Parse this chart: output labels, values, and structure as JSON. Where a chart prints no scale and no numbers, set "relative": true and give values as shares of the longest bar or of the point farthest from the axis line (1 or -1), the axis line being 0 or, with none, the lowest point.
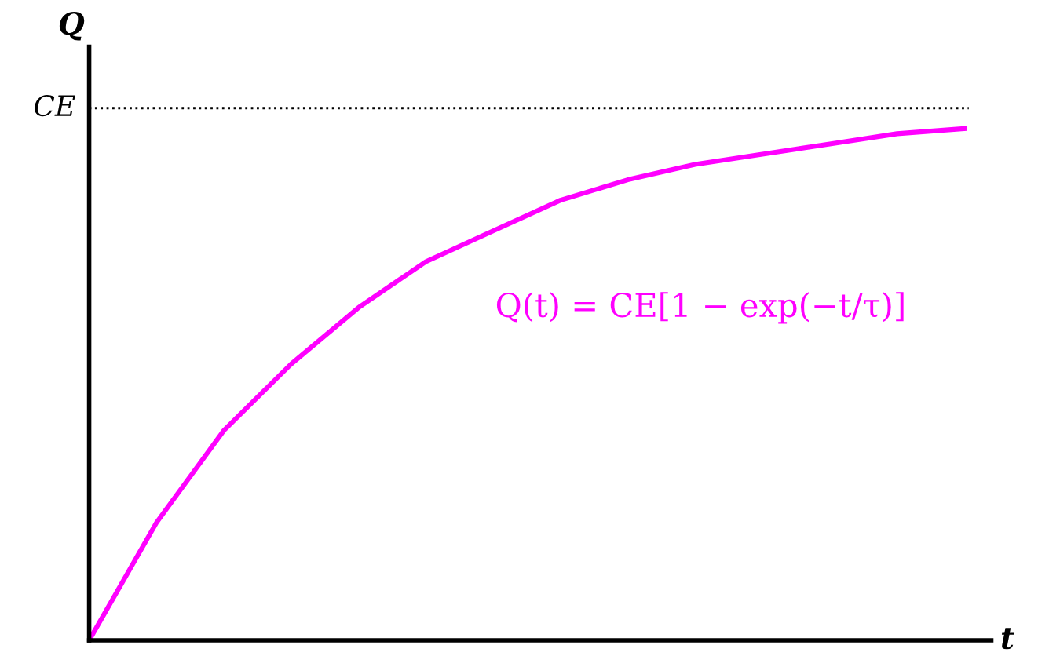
{
  "chart_data": {
    "type": "line",
    "relative": true,
    "xlabel": "t",
    "ylabel": "Q",
    "categories": [
      null,
      null,
      null,
      null,
      null,
      null,
      null,
      null,
      null,
      null,
      null,
      null,
      null,
      null
    ],
    "series": [
      {
        "color": "#ff00ff",
        "values": [
          0,
          0.23,
          0.41,
          0.54,
          0.65,
          0.74,
          0.8,
          0.86,
          0.9,
          0.93,
          0.95,
          0.97,
          0.99,
          1
        ]
      }
    ],
    "ref_lines": [
      {
        "axis": "y",
        "value": 1.04,
        "label": "CE",
        "color": "#000000",
        "line_style": "dotted"
      }
    ],
    "annotations": [
      "Q(t) = CE[1 − exp(−t/τ)]"
    ],
    "legend": false,
    "marker": "none",
    "line_style": "solid"
  }
}
